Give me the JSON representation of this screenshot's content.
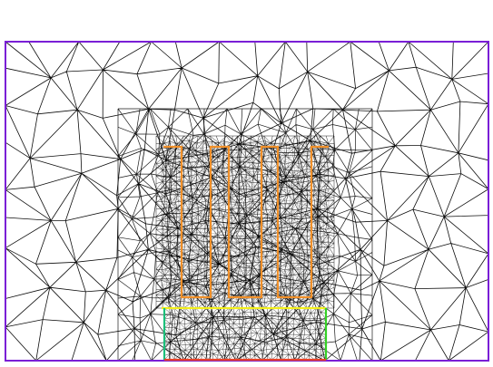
{
  "figure": {
    "type": "finite-element-mesh",
    "mesh_color": "#000000",
    "background_color": "#ffffff",
    "colors": {
      "outer_boundary": "#7a1fd6",
      "conductor_fingers": "#f0902a",
      "substrate_top": "#f2ef1c",
      "substrate_left": "#1bbf7a",
      "substrate_right": "#34d126",
      "substrate_bottom": "#e8402a"
    },
    "regions": [
      {
        "id": "outer-domain",
        "shape": "rectangle"
      },
      {
        "id": "meander-conductor",
        "shape": "comb-fingers",
        "finger_count": 4
      },
      {
        "id": "substrate-block",
        "shape": "rectangle"
      }
    ]
  }
}
